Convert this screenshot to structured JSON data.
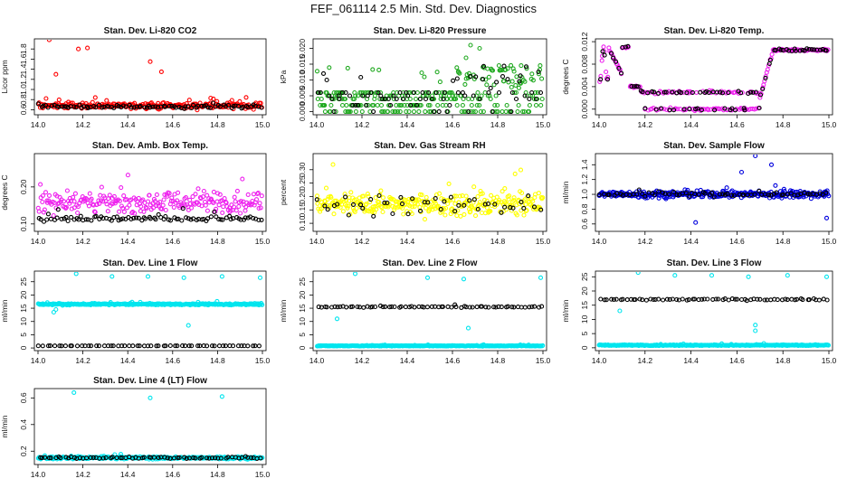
{
  "title": "FEF_061114  2.5 Min. Std. Dev. Diagnostics",
  "chart_data": [
    {
      "type": "scatter",
      "title": "Stan. Dev. Li-820 CO2",
      "ylabel": "Licor ppm",
      "xlim": [
        14.0,
        15.0
      ],
      "ylim": [
        0.5,
        2.0
      ],
      "xticks": [
        "14.0",
        "14.2",
        "14.4",
        "14.6",
        "14.8",
        "15.0"
      ],
      "yticks": [
        "0.6",
        "0.8",
        "1.0",
        "1.2",
        "1.4",
        "1.6",
        "1.8"
      ],
      "series": [
        {
          "color": "#ff0000",
          "pattern": "band",
          "base": 0.68,
          "spread": 0.1,
          "n": 260,
          "outliers": [
            [
              14.05,
              1.98
            ],
            [
              14.18,
              1.8
            ],
            [
              14.22,
              1.82
            ],
            [
              14.55,
              1.35
            ],
            [
              14.5,
              1.55
            ],
            [
              14.08,
              1.3
            ]
          ]
        },
        {
          "color": "#000000",
          "pattern": "band",
          "base": 0.66,
          "spread": 0.06,
          "n": 90
        }
      ]
    },
    {
      "type": "scatter",
      "title": "Stan. Dev. Li-820 Pressure",
      "ylabel": "kPa",
      "xlim": [
        14.0,
        15.0
      ],
      "ylim": [
        -0.001,
        0.023
      ],
      "xticks": [
        "14.0",
        "14.2",
        "14.4",
        "14.6",
        "14.8",
        "15.0"
      ],
      "yticks": [
        "0.000",
        "0.005",
        "0.010",
        "0.015",
        "0.020"
      ],
      "series": [
        {
          "color": "#22aa22",
          "pattern": "pressure",
          "n": 300,
          "outliers": [
            [
              14.68,
              0.021
            ],
            [
              14.72,
              0.02
            ],
            [
              14.66,
              0.017
            ]
          ]
        },
        {
          "color": "#000000",
          "pattern": "pressure",
          "n": 80
        }
      ]
    },
    {
      "type": "scatter",
      "title": "Stan. Dev. Li-820 Temp.",
      "ylabel": "degrees C",
      "xlim": [
        14.0,
        15.0
      ],
      "ylim": [
        -0.001,
        0.0125
      ],
      "xticks": [
        "14.0",
        "14.2",
        "14.4",
        "14.6",
        "14.8",
        "15.0"
      ],
      "yticks": [
        "0.000",
        "0.004",
        "0.008",
        "0.012"
      ],
      "series": [
        {
          "color": "#ee22ee",
          "pattern": "temp",
          "n": 220
        },
        {
          "color": "#000000",
          "pattern": "temp",
          "n": 90
        }
      ]
    },
    {
      "type": "scatter",
      "title": "Stan. Dev. Amb. Box Temp.",
      "ylabel": "degrees C",
      "xlim": [
        14.0,
        15.0
      ],
      "ylim": [
        0.08,
        0.29
      ],
      "xticks": [
        "14.0",
        "14.2",
        "14.4",
        "14.6",
        "14.8",
        "15.0"
      ],
      "yticks": [
        "0.10",
        "0.20"
      ],
      "series": [
        {
          "color": "#ee22ee",
          "pattern": "band",
          "base": 0.16,
          "spread": 0.05,
          "n": 240
        },
        {
          "color": "#000000",
          "pattern": "band",
          "base": 0.115,
          "spread": 0.015,
          "n": 90
        }
      ]
    },
    {
      "type": "scatter",
      "title": "Stan. Dev. Gas Stream RH",
      "ylabel": "percent",
      "xlim": [
        14.0,
        15.0
      ],
      "ylim": [
        0.07,
        0.36
      ],
      "xticks": [
        "14.0",
        "14.2",
        "14.4",
        "14.6",
        "14.8",
        "15.0"
      ],
      "yticks": [
        "0.10",
        "0.15",
        "0.20",
        "0.25",
        "0.30"
      ],
      "series": [
        {
          "color": "#ffff00",
          "pattern": "band",
          "base": 0.17,
          "spread": 0.07,
          "n": 320
        },
        {
          "color": "#000000",
          "pattern": "band",
          "base": 0.17,
          "spread": 0.06,
          "n": 45
        }
      ]
    },
    {
      "type": "scatter",
      "title": "Stan. Dev. Sample Flow",
      "ylabel": "ml/min",
      "xlim": [
        14.0,
        15.0
      ],
      "ylim": [
        0.5,
        1.55
      ],
      "xticks": [
        "14.0",
        "14.2",
        "14.4",
        "14.6",
        "14.8",
        "15.0"
      ],
      "yticks": [
        "0.6",
        "0.8",
        "1.0",
        "1.2",
        "1.4"
      ],
      "series": [
        {
          "color": "#0000dd",
          "pattern": "band",
          "base": 1.0,
          "spread": 0.08,
          "n": 320,
          "outliers": [
            [
              14.68,
              1.52
            ],
            [
              14.62,
              1.3
            ],
            [
              14.75,
              1.4
            ],
            [
              14.99,
              0.68
            ],
            [
              14.42,
              0.62
            ]
          ]
        },
        {
          "color": "#000000",
          "pattern": "band",
          "base": 1.0,
          "spread": 0.05,
          "n": 70
        }
      ]
    },
    {
      "type": "scatter",
      "title": "Stan. Dev. Line 1 Flow",
      "ylabel": "ml/min",
      "xlim": [
        14.0,
        15.0
      ],
      "ylim": [
        -1,
        29
      ],
      "xticks": [
        "14.0",
        "14.2",
        "14.4",
        "14.6",
        "14.8",
        "15.0"
      ],
      "yticks": [
        "0",
        "5",
        "10",
        "15",
        "20",
        "25"
      ],
      "series": [
        {
          "color": "#00e5ee",
          "pattern": "line",
          "base": 16.5,
          "spread": 0.5,
          "n": 300,
          "outliers": [
            [
              14.17,
              28
            ],
            [
              14.33,
              27
            ],
            [
              14.49,
              27
            ],
            [
              14.65,
              26.5
            ],
            [
              14.82,
              27
            ],
            [
              14.99,
              26.5
            ],
            [
              14.67,
              8.5
            ],
            [
              14.07,
              13.5
            ],
            [
              14.08,
              14.5
            ]
          ]
        },
        {
          "color": "#000000",
          "pattern": "line",
          "base": 0.8,
          "spread": 0.05,
          "n": 60
        }
      ]
    },
    {
      "type": "scatter",
      "title": "Stan. Dev. Line 2 Flow",
      "ylabel": "ml/min",
      "xlim": [
        14.0,
        15.0
      ],
      "ylim": [
        -1,
        29
      ],
      "xticks": [
        "14.0",
        "14.2",
        "14.4",
        "14.6",
        "14.8",
        "15.0"
      ],
      "yticks": [
        "0",
        "5",
        "10",
        "15",
        "20",
        "25"
      ],
      "series": [
        {
          "color": "#00e5ee",
          "pattern": "line",
          "base": 0.8,
          "spread": 0.25,
          "n": 300,
          "outliers": [
            [
              14.17,
              28
            ],
            [
              14.49,
              26.5
            ],
            [
              14.65,
              26
            ],
            [
              14.99,
              26.5
            ],
            [
              14.67,
              7.5
            ],
            [
              14.09,
              11
            ]
          ]
        },
        {
          "color": "#000000",
          "pattern": "line",
          "base": 15.5,
          "spread": 0.4,
          "n": 70
        }
      ]
    },
    {
      "type": "scatter",
      "title": "Stan. Dev. Line 3 Flow",
      "ylabel": "ml/min",
      "xlim": [
        14.0,
        15.0
      ],
      "ylim": [
        -1,
        27
      ],
      "xticks": [
        "14.0",
        "14.2",
        "14.4",
        "14.6",
        "14.8",
        "15.0"
      ],
      "yticks": [
        "0",
        "5",
        "10",
        "15",
        "20",
        "25"
      ],
      "series": [
        {
          "color": "#00e5ee",
          "pattern": "line",
          "base": 0.9,
          "spread": 0.3,
          "n": 300,
          "outliers": [
            [
              14.17,
              26.5
            ],
            [
              14.33,
              25.5
            ],
            [
              14.49,
              25.5
            ],
            [
              14.65,
              25
            ],
            [
              14.82,
              25.5
            ],
            [
              14.99,
              25
            ],
            [
              14.68,
              8
            ],
            [
              14.68,
              6
            ],
            [
              14.09,
              13
            ]
          ]
        },
        {
          "color": "#000000",
          "pattern": "line",
          "base": 17.0,
          "spread": 0.5,
          "n": 70
        }
      ]
    },
    {
      "type": "scatter",
      "title": "Stan. Dev. Line 4 (LT) Flow",
      "ylabel": "ml/min",
      "xlim": [
        14.0,
        15.0
      ],
      "ylim": [
        0.1,
        0.67
      ],
      "xticks": [
        "14.0",
        "14.2",
        "14.4",
        "14.6",
        "14.8",
        "15.0"
      ],
      "yticks": [
        "0.2",
        "0.4",
        "0.6"
      ],
      "series": [
        {
          "color": "#00e5ee",
          "pattern": "line",
          "base": 0.15,
          "spread": 0.015,
          "n": 300,
          "outliers": [
            [
              14.16,
              0.64
            ],
            [
              14.5,
              0.6
            ],
            [
              14.82,
              0.61
            ]
          ]
        },
        {
          "color": "#000000",
          "pattern": "line",
          "base": 0.15,
          "spread": 0.01,
          "n": 70
        }
      ]
    }
  ]
}
